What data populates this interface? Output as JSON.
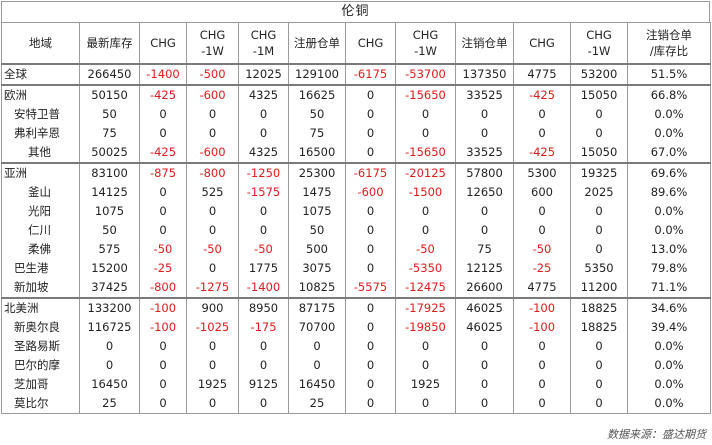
{
  "title": "伦铜",
  "headers": [
    "地域",
    "最新库存",
    "CHG",
    "CHG\n-1W",
    "CHG\n-1M",
    "注册仓单",
    "CHG",
    "CHG\n-1W",
    "注销仓单",
    "CHG",
    "CHG\n-1W",
    "注销仓单\n/库存比"
  ],
  "rows": [
    {
      "name": "全球",
      "level": 0,
      "group": true,
      "cells": [
        "266450",
        "-1400",
        "-500",
        "12025",
        "129100",
        "-6175",
        "-53700",
        "137350",
        "4775",
        "53200",
        "51.5%"
      ]
    },
    {
      "name": "欧洲",
      "level": 0,
      "group": true,
      "cells": [
        "50150",
        "-425",
        "-600",
        "4325",
        "16625",
        "0",
        "-15650",
        "33525",
        "-425",
        "15050",
        "66.8%"
      ]
    },
    {
      "name": "安特卫普",
      "level": 1,
      "group": false,
      "cells": [
        "50",
        "0",
        "0",
        "0",
        "50",
        "0",
        "0",
        "0",
        "0",
        "0",
        "0.0%"
      ]
    },
    {
      "name": "弗利辛恩",
      "level": 1,
      "group": false,
      "cells": [
        "75",
        "0",
        "0",
        "0",
        "75",
        "0",
        "0",
        "0",
        "0",
        "0",
        "0.0%"
      ]
    },
    {
      "name": "其他",
      "level": 2,
      "group": false,
      "cells": [
        "50025",
        "-425",
        "-600",
        "4325",
        "16500",
        "0",
        "-15650",
        "33525",
        "-425",
        "15050",
        "67.0%"
      ]
    },
    {
      "name": "亚洲",
      "level": 0,
      "group": true,
      "cells": [
        "83100",
        "-875",
        "-800",
        "-1250",
        "25300",
        "-6175",
        "-20125",
        "57800",
        "5300",
        "19325",
        "69.6%"
      ]
    },
    {
      "name": "釜山",
      "level": 2,
      "group": false,
      "cells": [
        "14125",
        "0",
        "525",
        "-1575",
        "1475",
        "-600",
        "-1500",
        "12650",
        "600",
        "2025",
        "89.6%"
      ]
    },
    {
      "name": "光阳",
      "level": 2,
      "group": false,
      "cells": [
        "1075",
        "0",
        "0",
        "0",
        "1075",
        "0",
        "0",
        "0",
        "0",
        "0",
        "0.0%"
      ]
    },
    {
      "name": "仁川",
      "level": 2,
      "group": false,
      "cells": [
        "50",
        "0",
        "0",
        "0",
        "50",
        "0",
        "0",
        "0",
        "0",
        "0",
        "0.0%"
      ]
    },
    {
      "name": "柔佛",
      "level": 2,
      "group": false,
      "cells": [
        "575",
        "-50",
        "-50",
        "-50",
        "500",
        "0",
        "-50",
        "75",
        "-50",
        "0",
        "13.0%"
      ]
    },
    {
      "name": "巴生港",
      "level": 1,
      "group": false,
      "cells": [
        "15200",
        "-25",
        "0",
        "1775",
        "3075",
        "0",
        "-5350",
        "12125",
        "-25",
        "5350",
        "79.8%"
      ]
    },
    {
      "name": "新加坡",
      "level": 1,
      "group": false,
      "cells": [
        "37425",
        "-800",
        "-1275",
        "-1400",
        "10825",
        "-5575",
        "-12475",
        "26600",
        "4775",
        "11200",
        "71.1%"
      ]
    },
    {
      "name": "北美洲",
      "level": 0,
      "group": true,
      "cells": [
        "133200",
        "-100",
        "900",
        "8950",
        "87175",
        "0",
        "-17925",
        "46025",
        "-100",
        "18825",
        "34.6%"
      ]
    },
    {
      "name": "新奥尔良",
      "level": 1,
      "group": false,
      "cells": [
        "116725",
        "-100",
        "-1025",
        "-175",
        "70700",
        "0",
        "-19850",
        "46025",
        "-100",
        "18825",
        "39.4%"
      ]
    },
    {
      "name": "圣路易斯",
      "level": 1,
      "group": false,
      "cells": [
        "0",
        "0",
        "0",
        "0",
        "0",
        "0",
        "0",
        "0",
        "0",
        "0",
        "0.0%"
      ]
    },
    {
      "name": "巴尔的摩",
      "level": 1,
      "group": false,
      "cells": [
        "0",
        "0",
        "0",
        "0",
        "0",
        "0",
        "0",
        "0",
        "0",
        "0",
        "0.0%"
      ]
    },
    {
      "name": "芝加哥",
      "level": 1,
      "group": false,
      "cells": [
        "16450",
        "0",
        "1925",
        "9125",
        "16450",
        "0",
        "1925",
        "0",
        "0",
        "0",
        "0.0%"
      ]
    },
    {
      "name": "莫比尔",
      "level": 1,
      "group": false,
      "cells": [
        "25",
        "0",
        "0",
        "0",
        "25",
        "0",
        "0",
        "0",
        "0",
        "0",
        "0.0%"
      ]
    }
  ],
  "footer": "数据来源：盛达期货",
  "colors": {
    "negative": "#e21b1b",
    "text": "#222222",
    "border": "#9a9a9a"
  }
}
